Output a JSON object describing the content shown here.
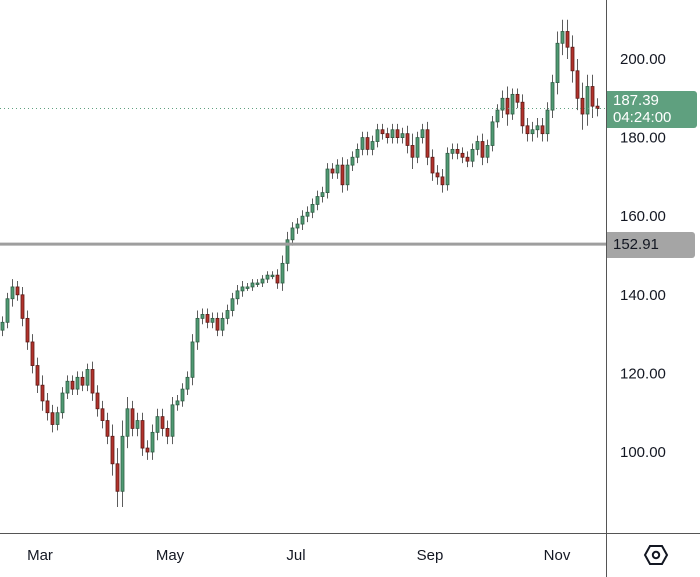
{
  "chart_data": {
    "type": "candlestick",
    "title": "",
    "ylim": [
      82,
      215
    ],
    "y_ticks": [
      100,
      120,
      140,
      160,
      180,
      200
    ],
    "y_tick_labels": [
      "100.00",
      "120.00",
      "140.00",
      "160.00",
      "180.00",
      "200.00"
    ],
    "x_ticks": [
      {
        "label": "Mar",
        "index": 7.6
      },
      {
        "label": "May",
        "index": 33.6
      },
      {
        "label": "Jul",
        "index": 58.8
      },
      {
        "label": "Sep",
        "index": 85.6
      },
      {
        "label": "Nov",
        "index": 111
      }
    ],
    "close": [
      133,
      139,
      142,
      140,
      134,
      128,
      122,
      117,
      113,
      110,
      107,
      110,
      115,
      118,
      116,
      119,
      117,
      121,
      115,
      111,
      108,
      104,
      97,
      90,
      104,
      111,
      106,
      108,
      101,
      100,
      105,
      109,
      106,
      104,
      112,
      113,
      116,
      119,
      128,
      134,
      135,
      133,
      134,
      131,
      134,
      136,
      139,
      141,
      142,
      142,
      143,
      143,
      144,
      145,
      145,
      143,
      148,
      154,
      157,
      158,
      160,
      161,
      163,
      165,
      166,
      172,
      171,
      173,
      168,
      173,
      175,
      177,
      180,
      177,
      179,
      182,
      181,
      180,
      182,
      180,
      181,
      178,
      175,
      180,
      182,
      175,
      171,
      170,
      168,
      176,
      177,
      176,
      175,
      174,
      177,
      179,
      175,
      178,
      184,
      187,
      190,
      186,
      191,
      189,
      183,
      181,
      182,
      183,
      181,
      187,
      194,
      204,
      207,
      203,
      197,
      190,
      186,
      193,
      188,
      187.39
    ],
    "open": [
      131,
      133,
      139,
      142,
      140,
      134,
      128,
      122,
      117,
      113,
      110,
      107,
      110,
      115,
      118,
      116,
      119,
      117,
      121,
      115,
      111,
      108,
      104,
      97,
      90,
      104,
      111,
      106,
      108,
      101,
      100,
      105,
      109,
      106,
      104,
      112,
      113,
      116,
      119,
      128,
      134,
      135,
      133,
      134,
      131,
      134,
      136,
      139,
      141,
      142,
      142,
      143,
      143,
      144,
      145,
      145,
      143,
      148,
      154,
      157,
      158,
      160,
      161,
      163,
      165,
      166,
      172,
      171,
      173,
      168,
      173,
      175,
      177,
      180,
      177,
      179,
      182,
      181,
      180,
      182,
      180,
      181,
      178,
      175,
      180,
      182,
      175,
      171,
      170,
      168,
      176,
      177,
      176,
      175,
      174,
      177,
      179,
      175,
      178,
      184,
      187,
      190,
      186,
      191,
      189,
      183,
      181,
      182,
      183,
      181,
      187,
      194,
      204,
      207,
      203,
      197,
      190,
      186,
      193,
      188
    ],
    "range_pad": [
      1.5,
      1.5,
      2,
      1.5,
      2,
      2,
      2,
      2,
      2.5,
      2,
      2,
      1.5,
      1.5,
      1.5,
      1.5,
      1.5,
      1.5,
      1.5,
      2,
      2,
      2,
      2,
      3,
      4,
      4,
      3,
      2,
      2,
      2,
      2,
      2,
      2,
      2,
      2,
      2,
      1.5,
      1.5,
      1.5,
      2,
      2,
      1.5,
      1.5,
      1.5,
      1.5,
      1.5,
      1.5,
      1.5,
      1.5,
      1.5,
      1,
      1,
      1,
      1,
      1,
      1,
      1.5,
      2,
      2,
      1.5,
      1.5,
      1.5,
      1.5,
      1.5,
      1.5,
      1.5,
      1.5,
      1.5,
      1.5,
      2,
      1.5,
      1.5,
      1.5,
      1.5,
      1.5,
      1.5,
      1.5,
      1.5,
      1.5,
      1.5,
      1.5,
      1.5,
      2,
      3,
      1.5,
      1.5,
      2,
      2,
      2,
      2,
      1.5,
      1.5,
      1.5,
      1.5,
      1.5,
      1.5,
      1.5,
      2,
      1.5,
      1.5,
      1.5,
      2,
      3,
      1.5,
      1.5,
      2,
      2,
      2,
      2,
      2,
      2,
      2,
      3,
      3,
      3,
      3,
      3,
      4,
      3,
      3,
      2
    ],
    "current_price": 187.39,
    "current_price_label": "187.39",
    "countdown": "04:24:00",
    "horizontal_line": 152.91,
    "horizontal_line_label": "152.91",
    "up_color": "#4f9a72",
    "down_color": "#b2322c"
  }
}
